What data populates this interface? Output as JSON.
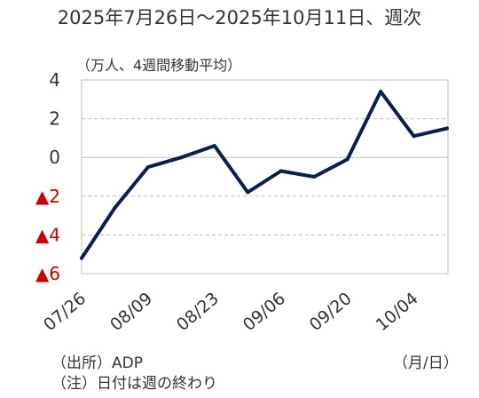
{
  "chart_data": {
    "type": "line",
    "title": "2025年7月26日～2025年10月11日、週次",
    "ylabel": "（万人、4週間移動平均）",
    "xunit": "（月/日）",
    "x": [
      "07/26",
      "08/02",
      "08/09",
      "08/16",
      "08/23",
      "08/30",
      "09/06",
      "09/13",
      "09/20",
      "09/27",
      "10/04",
      "10/11"
    ],
    "x_tick_labels": [
      "07/26",
      "08/09",
      "08/23",
      "09/06",
      "09/20",
      "10/04"
    ],
    "y_ticks": [
      4,
      2,
      0,
      -2,
      -4,
      -6
    ],
    "y_tick_labels": [
      "4",
      "2",
      "0",
      "▲2",
      "▲4",
      "▲6"
    ],
    "ylim": [
      -6,
      4
    ],
    "series": [
      {
        "values": [
          -5.2,
          -2.6,
          -0.5,
          0.0,
          0.6,
          -1.8,
          -0.7,
          -1.0,
          -0.1,
          3.4,
          1.1,
          1.5
        ]
      }
    ],
    "grid": true,
    "colors": {
      "line": "#0b1f4d",
      "negative_tick": "#cc0000",
      "grid": "#bfbfbf"
    }
  },
  "notes": {
    "source": "（出所）ADP",
    "note": "（注）日付は週の終わり"
  }
}
